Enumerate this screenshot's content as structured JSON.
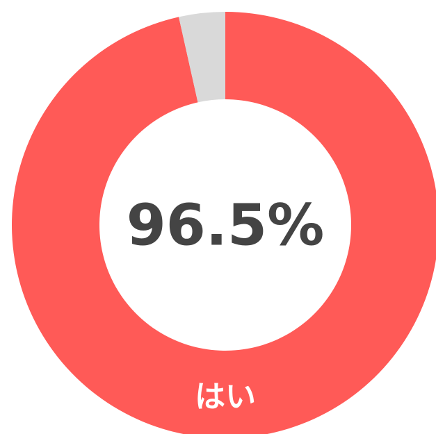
{
  "chart_data": {
    "type": "donut",
    "categories": [
      "はい",
      null
    ],
    "values": [
      96.5,
      3.5
    ],
    "value_labels": [
      "96.5%",
      null
    ],
    "colors": [
      "#ff5a57",
      "#d9d9d9"
    ]
  }
}
